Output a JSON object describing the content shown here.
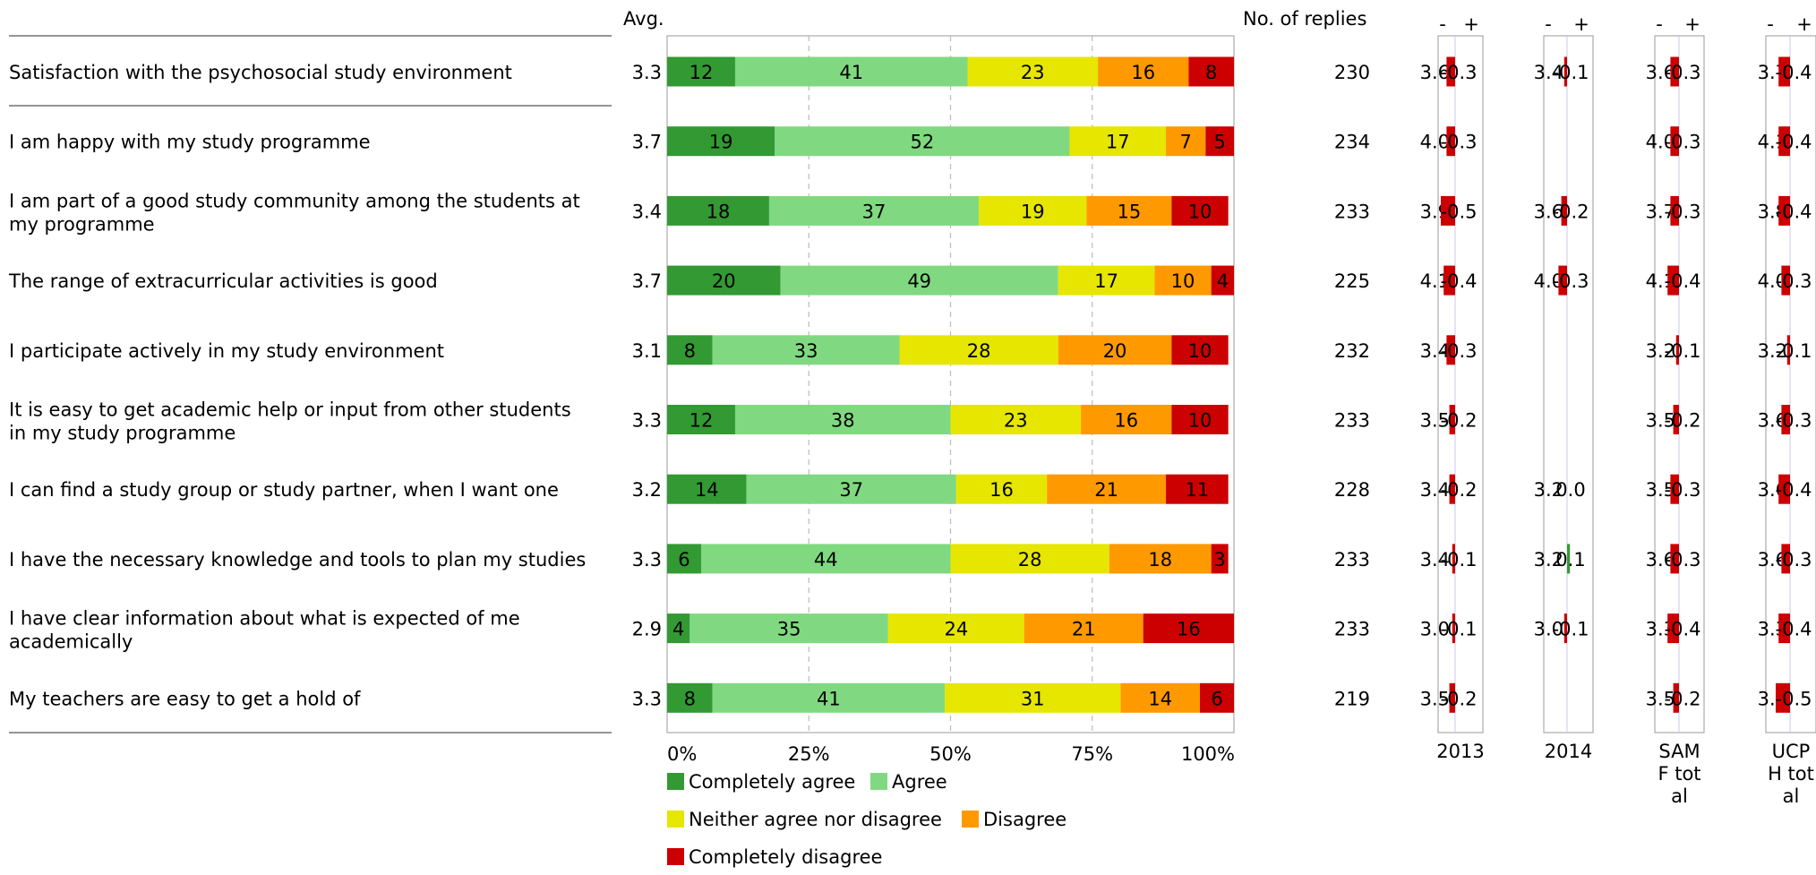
{
  "chart_data": {
    "type": "bar",
    "stacked": true,
    "orientation": "horizontal",
    "avg_header": "Avg.",
    "replies_header": "No. of replies",
    "x_ticks": [
      "0%",
      "25%",
      "50%",
      "75%",
      "100%"
    ],
    "categories": [
      [
        "Satisfaction with the psychosocial study environment"
      ],
      [
        "I am happy with my study programme"
      ],
      [
        "I am part of a good study community among the students at",
        "my programme"
      ],
      [
        "The range of extracurricular activities is good"
      ],
      [
        "I participate actively in my study environment"
      ],
      [
        "It is easy to get academic help or input from other students",
        "in my study programme"
      ],
      [
        "I can find a study group or study partner, when I want one"
      ],
      [
        "I have the necessary knowledge and tools to plan my studies"
      ],
      [
        "I have clear information about what is expected of me",
        "academically"
      ],
      [
        "My teachers are easy to get a hold of"
      ]
    ],
    "averages": [
      "3.3",
      "3.7",
      "3.4",
      "3.7",
      "3.1",
      "3.3",
      "3.2",
      "3.3",
      "2.9",
      "3.3"
    ],
    "replies": [
      "230",
      "234",
      "233",
      "225",
      "232",
      "233",
      "228",
      "233",
      "233",
      "219"
    ],
    "series": [
      {
        "name": "Completely agree",
        "color": "#339933",
        "values": [
          12,
          19,
          18,
          20,
          8,
          12,
          14,
          6,
          4,
          8
        ]
      },
      {
        "name": "Agree",
        "color": "#80d980",
        "values": [
          41,
          52,
          37,
          49,
          33,
          38,
          37,
          44,
          35,
          41
        ]
      },
      {
        "name": "Neither agree nor disagree",
        "color": "#e6e600",
        "values": [
          23,
          17,
          19,
          17,
          28,
          23,
          16,
          28,
          24,
          31
        ]
      },
      {
        "name": "Disagree",
        "color": "#ff9900",
        "values": [
          16,
          7,
          15,
          10,
          20,
          16,
          21,
          18,
          21,
          14
        ]
      },
      {
        "name": "Completely disagree",
        "color": "#cc0000",
        "values": [
          8,
          5,
          10,
          4,
          10,
          10,
          11,
          3,
          16,
          6
        ]
      }
    ],
    "comparison_sign_labels": [
      "-",
      "+"
    ],
    "comparisons": [
      {
        "label": [
          "2013"
        ],
        "avgs": [
          "3.6",
          "4.0",
          "3.9",
          "4.1",
          "3.4",
          "3.5",
          "3.4",
          "3.4",
          "3.0",
          "3.5"
        ],
        "diffs": [
          "-0.3",
          "-0.3",
          "-0.5",
          "-0.4",
          "-0.3",
          "-0.2",
          "-0.2",
          "-0.1",
          "-0.1",
          "-0.2"
        ]
      },
      {
        "label": [
          "2014"
        ],
        "avgs": [
          "3.4",
          null,
          "3.6",
          "4.0",
          null,
          null,
          "3.2",
          "3.2",
          "3.0",
          null
        ],
        "diffs": [
          "-0.1",
          null,
          "-0.2",
          "-0.3",
          null,
          null,
          "0.0",
          "0.1",
          "-0.1",
          null
        ]
      },
      {
        "label": [
          "SAM",
          "F tot",
          "al"
        ],
        "avgs": [
          "3.6",
          "4.0",
          "3.7",
          "4.1",
          "3.2",
          "3.5",
          "3.5",
          "3.6",
          "3.3",
          "3.5"
        ],
        "diffs": [
          "-0.3",
          "-0.3",
          "-0.3",
          "-0.4",
          "-0.1",
          "-0.2",
          "-0.3",
          "-0.3",
          "-0.4",
          "-0.2"
        ]
      },
      {
        "label": [
          "UCP",
          "H tot",
          "al"
        ],
        "avgs": [
          "3.7",
          "4.1",
          "3.8",
          "4.0",
          "3.2",
          "3.6",
          "3.6",
          "3.6",
          "3.3",
          "3.8"
        ],
        "diffs": [
          "-0.4",
          "-0.4",
          "-0.4",
          "-0.3",
          "-0.1",
          "-0.3",
          "-0.4",
          "-0.3",
          "-0.4",
          "-0.5"
        ]
      }
    ],
    "diff_colors": {
      "negative": "#cc0000",
      "positive": "#339933"
    },
    "diff_axis_max": 0.5
  }
}
